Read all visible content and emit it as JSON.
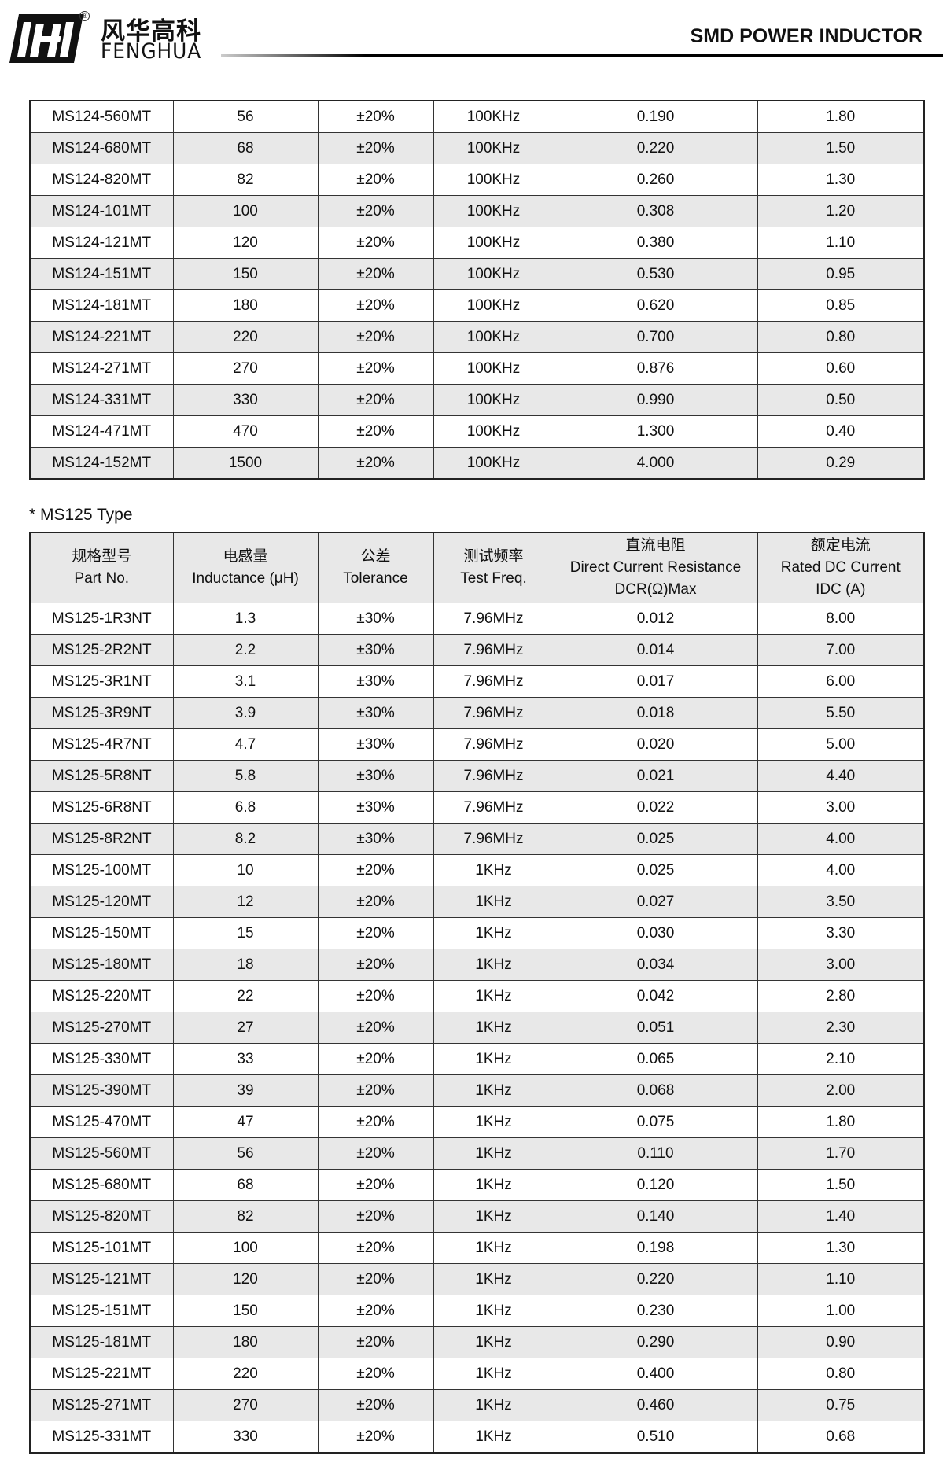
{
  "header": {
    "brand_cn": "风华高科",
    "brand_en": "FENGHUA",
    "registered": "®",
    "title": "SMD POWER INDUCTOR"
  },
  "table1": {
    "rows": [
      [
        "MS124-560MT",
        "56",
        "±20%",
        "100KHz",
        "0.190",
        "1.80"
      ],
      [
        "MS124-680MT",
        "68",
        "±20%",
        "100KHz",
        "0.220",
        "1.50"
      ],
      [
        "MS124-820MT",
        "82",
        "±20%",
        "100KHz",
        "0.260",
        "1.30"
      ],
      [
        "MS124-101MT",
        "100",
        "±20%",
        "100KHz",
        "0.308",
        "1.20"
      ],
      [
        "MS124-121MT",
        "120",
        "±20%",
        "100KHz",
        "0.380",
        "1.10"
      ],
      [
        "MS124-151MT",
        "150",
        "±20%",
        "100KHz",
        "0.530",
        "0.95"
      ],
      [
        "MS124-181MT",
        "180",
        "±20%",
        "100KHz",
        "0.620",
        "0.85"
      ],
      [
        "MS124-221MT",
        "220",
        "±20%",
        "100KHz",
        "0.700",
        "0.80"
      ],
      [
        "MS124-271MT",
        "270",
        "±20%",
        "100KHz",
        "0.876",
        "0.60"
      ],
      [
        "MS124-331MT",
        "330",
        "±20%",
        "100KHz",
        "0.990",
        "0.50"
      ],
      [
        "MS124-471MT",
        "470",
        "±20%",
        "100KHz",
        "1.300",
        "0.40"
      ],
      [
        "MS124-152MT",
        "1500",
        "±20%",
        "100KHz",
        "4.000",
        "0.29"
      ]
    ]
  },
  "section2": {
    "title": "* MS125 Type"
  },
  "table2": {
    "headers": [
      [
        "规格型号",
        "Part No."
      ],
      [
        "电感量",
        "Inductance (μH)"
      ],
      [
        "公差",
        "Tolerance"
      ],
      [
        "测试频率",
        "Test Freq."
      ],
      [
        "直流电阻",
        "Direct Current Resistance",
        "DCR(Ω)Max"
      ],
      [
        "额定电流",
        "Rated DC Current",
        "IDC (A)"
      ]
    ],
    "rows": [
      [
        "MS125-1R3NT",
        "1.3",
        "±30%",
        "7.96MHz",
        "0.012",
        "8.00"
      ],
      [
        "MS125-2R2NT",
        "2.2",
        "±30%",
        "7.96MHz",
        "0.014",
        "7.00"
      ],
      [
        "MS125-3R1NT",
        "3.1",
        "±30%",
        "7.96MHz",
        "0.017",
        "6.00"
      ],
      [
        "MS125-3R9NT",
        "3.9",
        "±30%",
        "7.96MHz",
        "0.018",
        "5.50"
      ],
      [
        "MS125-4R7NT",
        "4.7",
        "±30%",
        "7.96MHz",
        "0.020",
        "5.00"
      ],
      [
        "MS125-5R8NT",
        "5.8",
        "±30%",
        "7.96MHz",
        "0.021",
        "4.40"
      ],
      [
        "MS125-6R8NT",
        "6.8",
        "±30%",
        "7.96MHz",
        "0.022",
        "3.00"
      ],
      [
        "MS125-8R2NT",
        "8.2",
        "±30%",
        "7.96MHz",
        "0.025",
        "4.00"
      ],
      [
        "MS125-100MT",
        "10",
        "±20%",
        "1KHz",
        "0.025",
        "4.00"
      ],
      [
        "MS125-120MT",
        "12",
        "±20%",
        "1KHz",
        "0.027",
        "3.50"
      ],
      [
        "MS125-150MT",
        "15",
        "±20%",
        "1KHz",
        "0.030",
        "3.30"
      ],
      [
        "MS125-180MT",
        "18",
        "±20%",
        "1KHz",
        "0.034",
        "3.00"
      ],
      [
        "MS125-220MT",
        "22",
        "±20%",
        "1KHz",
        "0.042",
        "2.80"
      ],
      [
        "MS125-270MT",
        "27",
        "±20%",
        "1KHz",
        "0.051",
        "2.30"
      ],
      [
        "MS125-330MT",
        "33",
        "±20%",
        "1KHz",
        "0.065",
        "2.10"
      ],
      [
        "MS125-390MT",
        "39",
        "±20%",
        "1KHz",
        "0.068",
        "2.00"
      ],
      [
        "MS125-470MT",
        "47",
        "±20%",
        "1KHz",
        "0.075",
        "1.80"
      ],
      [
        "MS125-560MT",
        "56",
        "±20%",
        "1KHz",
        "0.110",
        "1.70"
      ],
      [
        "MS125-680MT",
        "68",
        "±20%",
        "1KHz",
        "0.120",
        "1.50"
      ],
      [
        "MS125-820MT",
        "82",
        "±20%",
        "1KHz",
        "0.140",
        "1.40"
      ],
      [
        "MS125-101MT",
        "100",
        "±20%",
        "1KHz",
        "0.198",
        "1.30"
      ],
      [
        "MS125-121MT",
        "120",
        "±20%",
        "1KHz",
        "0.220",
        "1.10"
      ],
      [
        "MS125-151MT",
        "150",
        "±20%",
        "1KHz",
        "0.230",
        "1.00"
      ],
      [
        "MS125-181MT",
        "180",
        "±20%",
        "1KHz",
        "0.290",
        "0.90"
      ],
      [
        "MS125-221MT",
        "220",
        "±20%",
        "1KHz",
        "0.400",
        "0.80"
      ],
      [
        "MS125-271MT",
        "270",
        "±20%",
        "1KHz",
        "0.460",
        "0.75"
      ],
      [
        "MS125-331MT",
        "330",
        "±20%",
        "1KHz",
        "0.510",
        "0.68"
      ]
    ]
  }
}
